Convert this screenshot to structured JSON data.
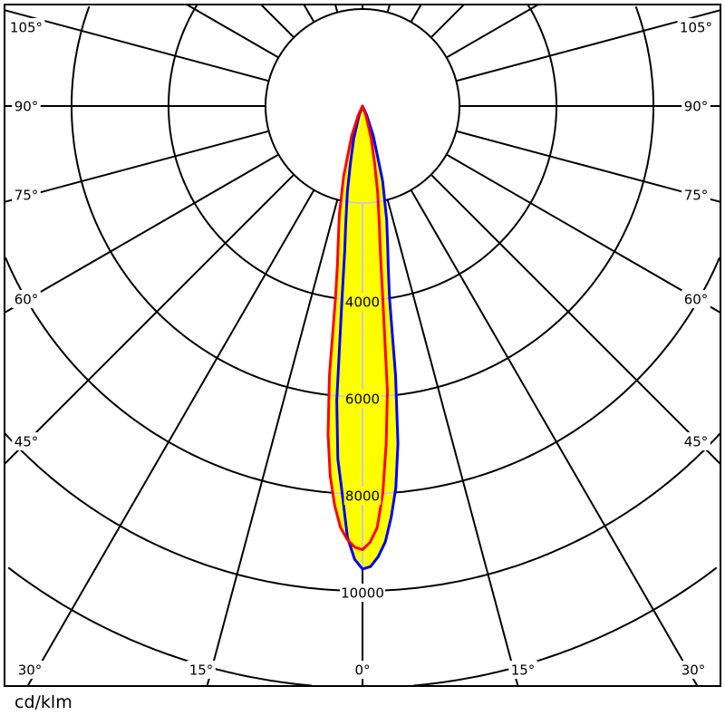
{
  "chart_data": {
    "type": "polar",
    "unit_label": "cd/klm",
    "radial_ticks": [
      2000,
      4000,
      6000,
      8000,
      10000,
      12000,
      14000,
      16000
    ],
    "radial_tick_labels": [
      "4000",
      "6000",
      "8000",
      "10000"
    ],
    "angle_step_deg": 15,
    "angle_labels_left": [
      "105°",
      "90°",
      "75°",
      "60°",
      "45°"
    ],
    "angle_labels_right": [
      "105°",
      "90°",
      "75°",
      "60°",
      "45°"
    ],
    "angle_labels_bottom": [
      "30°",
      "15°",
      "0°",
      "15°",
      "30°"
    ],
    "grid": true,
    "fill_color": "#ffff00",
    "series": [
      {
        "color": "#0000ff",
        "right": {
          "gamma": [
            0,
            1,
            2,
            3,
            4,
            5,
            6,
            7,
            8,
            9,
            10,
            12,
            15,
            20,
            25,
            30
          ],
          "intensity": [
            9550,
            9500,
            9300,
            9000,
            8500,
            7900,
            7000,
            5600,
            4000,
            3400,
            3000,
            2400,
            1600,
            650,
            200,
            0
          ]
        },
        "left": {
          "gamma": [
            0,
            1,
            2,
            3,
            4,
            5,
            6,
            7,
            8,
            10,
            12,
            15,
            20,
            25
          ],
          "intensity": [
            9550,
            9350,
            8900,
            8000,
            7300,
            6100,
            4100,
            3000,
            2500,
            1800,
            1200,
            700,
            200,
            0
          ]
        }
      },
      {
        "color": "#ff0000",
        "left": {
          "gamma": [
            0,
            1,
            2,
            3,
            4,
            5,
            6,
            7,
            8,
            9,
            10,
            12,
            15,
            20,
            25,
            30
          ],
          "intensity": [
            9150,
            9100,
            8950,
            8700,
            8250,
            7650,
            6800,
            5600,
            4000,
            3300,
            2900,
            2300,
            1500,
            650,
            200,
            0
          ]
        },
        "right": {
          "gamma": [
            0,
            1,
            2,
            3,
            4,
            5,
            6,
            7,
            8,
            10,
            12,
            15,
            20,
            25
          ],
          "intensity": [
            9150,
            9000,
            8700,
            8000,
            7000,
            5900,
            4000,
            3000,
            2500,
            1800,
            1200,
            700,
            200,
            0
          ]
        }
      }
    ]
  }
}
